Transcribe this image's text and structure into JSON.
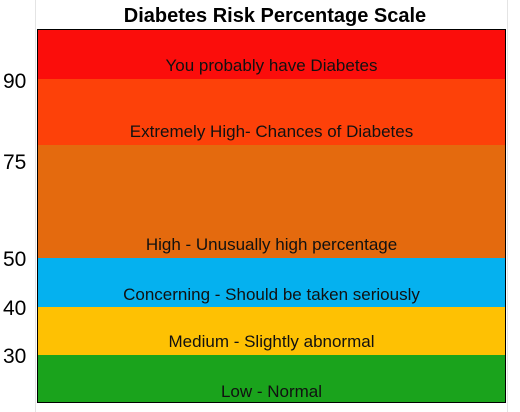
{
  "title": "Diabetes Risk Percentage Scale",
  "ticks": [
    "90",
    "75",
    "50",
    "40",
    "30"
  ],
  "bands": [
    {
      "label": "You probably have Diabetes",
      "color": "#fb0d0b"
    },
    {
      "label": "Extremely High- Chances of Diabetes",
      "color": "#fd4109"
    },
    {
      "label": "High - Unusually high percentage",
      "color": "#e46a0e"
    },
    {
      "label": "Concerning - Should be taken seriously",
      "color": "#05b1ef"
    },
    {
      "label": "Medium - Slightly abnormal",
      "color": "#fec103"
    },
    {
      "label": "Low - Normal",
      "color": "#1aa31c"
    }
  ]
}
